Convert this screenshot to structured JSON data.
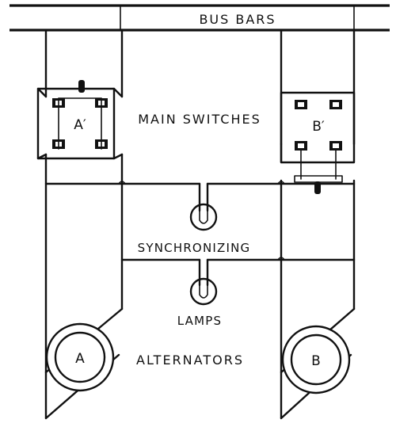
{
  "labels": {
    "bus_bars": "BUS BARS",
    "main_switches": "MAIN SWITCHES",
    "synchronizing": "SYNCHRONIZING",
    "lamps": "LAMPS",
    "alternators": "ALTERNATORS"
  },
  "switches": {
    "left": "A′",
    "right": "B′"
  },
  "alternators": {
    "left": "A",
    "right": "B"
  }
}
